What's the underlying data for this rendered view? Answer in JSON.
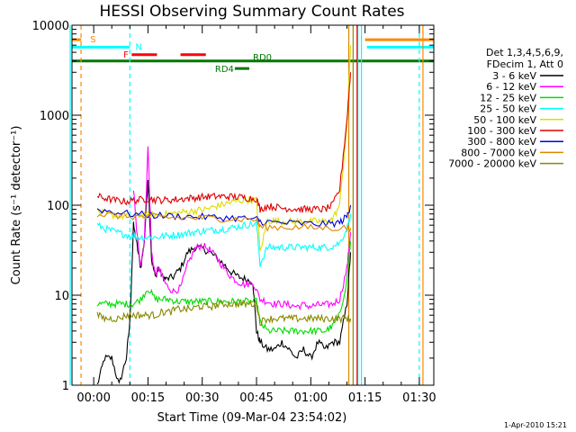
{
  "chart_data": {
    "type": "line",
    "title": "HESSI Observing Summary Count Rates",
    "xlabel": "Start Time (09-Mar-04 23:54:02)",
    "ylabel": "Count Rate (s⁻¹ detector⁻¹)",
    "yscale": "log",
    "ylim": [
      1,
      10000
    ],
    "xlim_minutes": [
      -6,
      94
    ],
    "x_ticks": [
      {
        "t": 0,
        "label": "00:00"
      },
      {
        "t": 15,
        "label": "00:15"
      },
      {
        "t": 30,
        "label": "00:30"
      },
      {
        "t": 45,
        "label": "00:45"
      },
      {
        "t": 60,
        "label": "01:00"
      },
      {
        "t": 75,
        "label": "01:15"
      },
      {
        "t": 90,
        "label": "01:30"
      }
    ],
    "y_ticks": [
      {
        "v": 1,
        "label": "1"
      },
      {
        "v": 10,
        "label": "10"
      },
      {
        "v": 100,
        "label": "100"
      },
      {
        "v": 1000,
        "label": "1000"
      },
      {
        "v": 10000,
        "label": "10000"
      }
    ],
    "legend": {
      "header": [
        "Det 1,3,4,5,6,9,",
        "FDecim 1, Att 0"
      ],
      "placement": "right"
    },
    "series": [
      {
        "name": "3 - 6 keV",
        "color": "#000000",
        "x": [
          1,
          3,
          5,
          7,
          9,
          10,
          11,
          12,
          13,
          14,
          15,
          16,
          17,
          18,
          19,
          20,
          22,
          24,
          26,
          28,
          30,
          32,
          34,
          36,
          38,
          40,
          42,
          44,
          45,
          46,
          48,
          50,
          52,
          54,
          56,
          58,
          60,
          62,
          64,
          66,
          68,
          70,
          71
        ],
        "y": [
          1,
          2,
          2,
          1,
          2,
          5,
          60,
          35,
          20,
          40,
          200,
          25,
          16,
          20,
          16,
          15,
          16,
          20,
          30,
          34,
          33,
          30,
          26,
          22,
          18,
          16,
          15,
          14,
          4,
          3,
          2.5,
          2.5,
          3,
          2.5,
          2,
          2.5,
          2,
          3,
          2.5,
          3,
          3,
          8,
          30
        ]
      },
      {
        "name": "6 - 12 keV",
        "color": "#ff00ff",
        "x": [
          11,
          12,
          13,
          14,
          15,
          16,
          17,
          18,
          19,
          20,
          22,
          24,
          26,
          28,
          30,
          32,
          34,
          36,
          38,
          40,
          42,
          44,
          46,
          48,
          50,
          52,
          54,
          56,
          58,
          60,
          62,
          64,
          66,
          68,
          70,
          71
        ],
        "y": [
          150,
          45,
          22,
          40,
          450,
          30,
          17,
          20,
          16,
          13,
          11,
          12,
          22,
          33,
          36,
          32,
          26,
          20,
          16,
          14,
          13,
          14,
          9,
          8.5,
          8,
          8,
          7.8,
          7.5,
          7.8,
          7.5,
          7.8,
          7.8,
          8,
          9,
          20,
          50
        ]
      },
      {
        "name": "12 - 25 keV",
        "color": "#00dd00",
        "x": [
          1,
          3,
          5,
          7,
          9,
          11,
          13,
          15,
          17,
          19,
          21,
          23,
          25,
          27,
          29,
          31,
          33,
          35,
          37,
          39,
          41,
          43,
          45,
          46,
          48,
          50,
          52,
          54,
          56,
          58,
          60,
          62,
          64,
          66,
          68,
          70,
          71
        ],
        "y": [
          8,
          8,
          8,
          8,
          8,
          8,
          9,
          12,
          9,
          9,
          9,
          8.5,
          8.5,
          8.5,
          8.5,
          8.5,
          8.5,
          8.5,
          8.5,
          8.5,
          8.5,
          8.5,
          8.5,
          5,
          4,
          4,
          4,
          4,
          4,
          4,
          4,
          4,
          4,
          4.5,
          6,
          15,
          40
        ]
      },
      {
        "name": "25 - 50 keV",
        "color": "#00ffff",
        "x": [
          1,
          3,
          5,
          7,
          9,
          11,
          13,
          15,
          17,
          19,
          21,
          23,
          25,
          27,
          29,
          31,
          33,
          35,
          37,
          39,
          41,
          43,
          45,
          46,
          48,
          50,
          52,
          54,
          56,
          58,
          60,
          62,
          64,
          66,
          68,
          70,
          71
        ],
        "y": [
          60,
          55,
          52,
          49,
          47,
          45,
          44,
          44,
          44,
          45,
          46,
          47,
          48,
          50,
          51,
          52,
          53,
          54,
          55,
          57,
          59,
          61,
          62,
          22,
          34,
          34,
          34,
          34,
          34,
          34,
          34,
          34,
          34,
          35,
          38,
          55,
          80
        ]
      },
      {
        "name": "50 - 100 keV",
        "color": "#dddd00",
        "x": [
          1,
          3,
          5,
          7,
          9,
          11,
          13,
          15,
          17,
          19,
          21,
          23,
          25,
          27,
          29,
          31,
          33,
          35,
          37,
          39,
          41,
          43,
          45,
          46,
          48,
          50,
          52,
          54,
          56,
          58,
          60,
          62,
          64,
          66,
          68,
          70,
          71
        ],
        "y": [
          85,
          80,
          78,
          76,
          75,
          76,
          78,
          78,
          78,
          80,
          80,
          82,
          84,
          86,
          88,
          90,
          95,
          100,
          105,
          110,
          113,
          115,
          113,
          30,
          68,
          67,
          66,
          66,
          66,
          66,
          66,
          66,
          66,
          70,
          100,
          800,
          6000
        ]
      },
      {
        "name": "100 - 300 keV",
        "color": "#dd0000",
        "x": [
          1,
          3,
          5,
          7,
          9,
          11,
          13,
          15,
          17,
          19,
          21,
          23,
          25,
          27,
          29,
          31,
          33,
          35,
          37,
          39,
          41,
          43,
          45,
          46,
          48,
          50,
          52,
          54,
          56,
          58,
          60,
          62,
          64,
          66,
          68,
          70,
          71
        ],
        "y": [
          125,
          120,
          115,
          112,
          110,
          113,
          115,
          118,
          115,
          114,
          114,
          116,
          118,
          120,
          122,
          124,
          125,
          125,
          125,
          124,
          122,
          120,
          118,
          90,
          98,
          96,
          93,
          92,
          91,
          90,
          90,
          90,
          90,
          100,
          150,
          900,
          3000
        ]
      },
      {
        "name": "300 - 800 keV",
        "color": "#0000dd",
        "x": [
          1,
          5,
          10,
          15,
          20,
          25,
          30,
          35,
          40,
          45,
          46,
          50,
          55,
          60,
          65,
          68,
          70,
          71
        ],
        "y": [
          90,
          85,
          80,
          78,
          76,
          75,
          74,
          73,
          72,
          70,
          66,
          64,
          63,
          62,
          62,
          64,
          75,
          100
        ]
      },
      {
        "name": "800 - 7000 keV",
        "color": "#dd8800",
        "x": [
          1,
          5,
          10,
          15,
          20,
          25,
          30,
          35,
          40,
          45,
          46,
          50,
          55,
          60,
          65,
          70,
          71
        ],
        "y": [
          80,
          77,
          75,
          74,
          73,
          72,
          72,
          71,
          70,
          70,
          57,
          57,
          57,
          56,
          56,
          56,
          56
        ]
      },
      {
        "name": "7000 - 20000 keV",
        "color": "#888800",
        "x": [
          1,
          3,
          5,
          7,
          9,
          11,
          13,
          15,
          17,
          19,
          21,
          23,
          25,
          27,
          29,
          31,
          33,
          35,
          37,
          39,
          41,
          43,
          45,
          46,
          48,
          50,
          52,
          54,
          56,
          58,
          60,
          62,
          64,
          66,
          68,
          70,
          71
        ],
        "y": [
          6,
          5.5,
          5.5,
          5.5,
          6,
          6,
          6,
          6,
          6,
          6.5,
          6.5,
          7,
          7,
          7,
          7.5,
          7.5,
          7.5,
          8,
          8,
          8,
          8,
          8,
          8,
          5,
          5.5,
          5.5,
          5.5,
          5.5,
          5.5,
          5.5,
          5.5,
          5.5,
          5.5,
          5.5,
          5.5,
          5.5,
          5.5
        ]
      }
    ],
    "state_bars": [
      {
        "label": "S",
        "color": "#ff8800",
        "y": 6900,
        "segments": [
          [
            -6,
            -3.5
          ],
          [
            75,
            94
          ]
        ]
      },
      {
        "label": "N",
        "color": "#00ffff",
        "y": 5700,
        "segments": [
          [
            -6,
            10
          ],
          [
            75.5,
            94
          ]
        ]
      },
      {
        "label": "F",
        "color": "#ff0000",
        "y": 4700,
        "segments": [
          [
            10.5,
            17.5
          ],
          [
            24,
            31
          ]
        ]
      },
      {
        "label": "RD0",
        "color": "#007700",
        "y": 4000,
        "segments": [
          [
            -6,
            94
          ]
        ]
      },
      {
        "label": "RD4",
        "color": "#007700",
        "y": 3300,
        "segments": [
          [
            39,
            43
          ]
        ]
      }
    ],
    "vertical_markers": [
      {
        "t": -3.5,
        "color": "#ff8800",
        "style": "dashed"
      },
      {
        "t": 10,
        "color": "#00ffff",
        "style": "dashed"
      },
      {
        "t": 90,
        "color": "#00ffff",
        "style": "dashed"
      },
      {
        "t": -6.5,
        "color": "#00ffff",
        "style": "solid"
      },
      {
        "t": 73,
        "color": "#00ffff",
        "style": "solid"
      },
      {
        "t": 74,
        "color": "#00ffff",
        "style": "solid"
      },
      {
        "t": 70.5,
        "color": "#dd8800",
        "style": "solid"
      },
      {
        "t": 71.7,
        "color": "#888800",
        "style": "solid"
      },
      {
        "t": 72.8,
        "color": "#dd0000",
        "style": "solid"
      },
      {
        "t": 91,
        "color": "#ff8800",
        "style": "solid"
      }
    ],
    "grid": false
  },
  "footer": {
    "date_stamp": "1-Apr-2010 15:21"
  }
}
